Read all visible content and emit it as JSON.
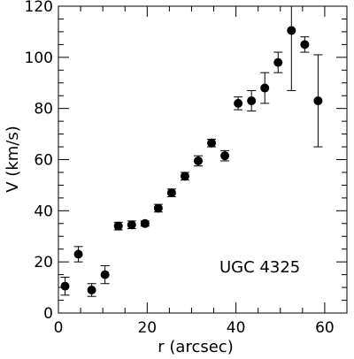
{
  "chart_data": {
    "type": "scatter",
    "annotation": "UGC 4325",
    "xlabel": "r (arcsec)",
    "ylabel": "V (km/s)",
    "xlim": [
      0,
      65
    ],
    "ylim": [
      0,
      120
    ],
    "x_ticks": [
      0,
      20,
      40,
      60
    ],
    "y_ticks": [
      0,
      20,
      40,
      60,
      80,
      100,
      120
    ],
    "x_minor_step": 5,
    "y_minor_step": 5,
    "grid": false,
    "legend": "none",
    "marker_color": "#000000",
    "series": [
      {
        "points": [
          {
            "x": 1.5,
            "y": 10.5,
            "err": 3.5
          },
          {
            "x": 4.5,
            "y": 23,
            "err": 3
          },
          {
            "x": 7.5,
            "y": 9,
            "err": 2.5
          },
          {
            "x": 10.5,
            "y": 15,
            "err": 3.5
          },
          {
            "x": 13.5,
            "y": 34,
            "err": 1.5
          },
          {
            "x": 16.5,
            "y": 34.5,
            "err": 1.5
          },
          {
            "x": 19.5,
            "y": 35,
            "err": 1
          },
          {
            "x": 22.5,
            "y": 41,
            "err": 1.5
          },
          {
            "x": 25.5,
            "y": 47,
            "err": 1.5
          },
          {
            "x": 28.5,
            "y": 53.5,
            "err": 1.5
          },
          {
            "x": 31.5,
            "y": 59.5,
            "err": 2
          },
          {
            "x": 34.5,
            "y": 66.5,
            "err": 1.5
          },
          {
            "x": 37.5,
            "y": 61.5,
            "err": 2
          },
          {
            "x": 40.5,
            "y": 82,
            "err": 2.5
          },
          {
            "x": 43.5,
            "y": 83,
            "err": 4
          },
          {
            "x": 46.5,
            "y": 88,
            "err": 6
          },
          {
            "x": 49.5,
            "y": 98,
            "err": 4
          },
          {
            "x": 52.5,
            "y": 110.5,
            "err": 23.5
          },
          {
            "x": 55.5,
            "y": 105,
            "err": 3
          },
          {
            "x": 58.5,
            "y": 83,
            "err": 18
          }
        ]
      }
    ]
  }
}
